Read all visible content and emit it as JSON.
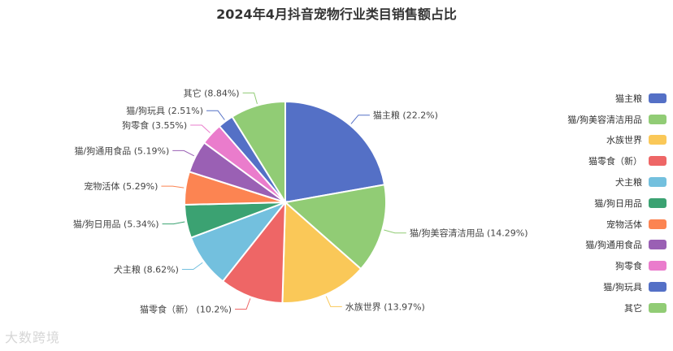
{
  "chart_data": {
    "type": "pie",
    "title": "2024年4月抖音宠物行业类目销售额占比",
    "slices": [
      {
        "name": "猫主粮",
        "value": 22.2,
        "label": "猫主粮 (22.2%)",
        "color": "#5470c6"
      },
      {
        "name": "猫/狗美容清洁用品",
        "value": 14.29,
        "label": "猫/狗美容清洁用品 (14.29%)",
        "color": "#91cc75"
      },
      {
        "name": "水族世界",
        "value": 13.97,
        "label": "水族世界 (13.97%)",
        "color": "#fac858"
      },
      {
        "name": "猫零食（新）",
        "value": 10.2,
        "label": "猫零食（新） (10.2%)",
        "color": "#ee6666"
      },
      {
        "name": "犬主粮",
        "value": 8.62,
        "label": "犬主粮 (8.62%)",
        "color": "#73c0de"
      },
      {
        "name": "猫/狗日用品",
        "value": 5.34,
        "label": "猫/狗日用品 (5.34%)",
        "color": "#3ba272"
      },
      {
        "name": "宠物活体",
        "value": 5.29,
        "label": "宠物活体 (5.29%)",
        "color": "#fc8452"
      },
      {
        "name": "猫/狗通用食品",
        "value": 5.19,
        "label": "猫/狗通用食品 (5.19%)",
        "color": "#9a60b4"
      },
      {
        "name": "狗零食",
        "value": 3.55,
        "label": "狗零食 (3.55%)",
        "color": "#ea7ccc"
      },
      {
        "name": "猫/狗玩具",
        "value": 2.51,
        "label": "猫/狗玩具 (2.51%)",
        "color": "#5470c6"
      },
      {
        "name": "其它",
        "value": 8.84,
        "label": "其它 (8.84%)",
        "color": "#91cc75"
      }
    ],
    "legend_position": "right"
  },
  "watermark": "大数跨境"
}
